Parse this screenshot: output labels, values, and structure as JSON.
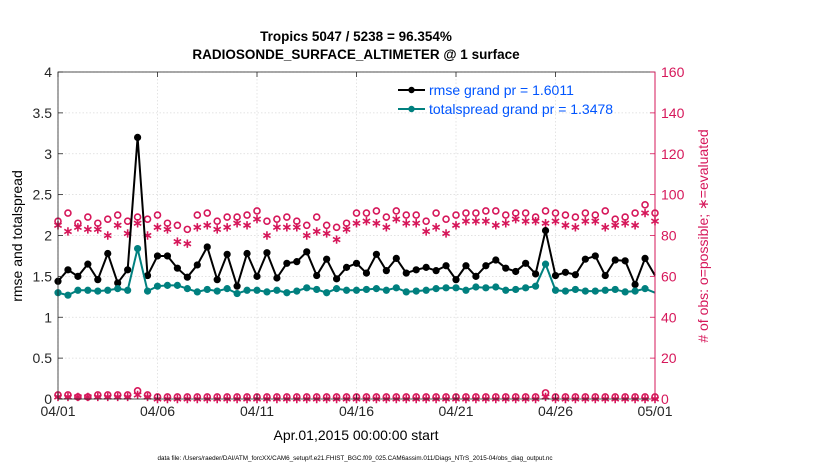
{
  "chart_data": {
    "type": "line",
    "title": [
      "Tropics 5047 / 5238 = 96.354%",
      "RADIOSONDE_SURFACE_ALTIMETER @ 1 surface"
    ],
    "xlabel": "Apr.01,2015 00:00:00 start",
    "ylabel_left": "rmse and totalspread",
    "ylabel_right": "# of obs: o=possible; ∗=evaluated",
    "xlim": [
      0,
      30
    ],
    "ylim_left": [
      0,
      4
    ],
    "ylim_right": [
      0,
      160
    ],
    "grid": true,
    "legend_position": "top-right",
    "x_ticks": [
      0,
      5,
      10,
      15,
      20,
      25,
      30
    ],
    "x_tick_labels": [
      "04/01",
      "04/06",
      "04/11",
      "04/16",
      "04/21",
      "04/26",
      "05/01"
    ],
    "y_left_ticks": [
      0,
      0.5,
      1,
      1.5,
      2,
      2.5,
      3,
      3.5,
      4
    ],
    "y_left_tick_labels": [
      "0",
      "0.5",
      "1",
      "1.5",
      "2",
      "2.5",
      "3",
      "3.5",
      "4"
    ],
    "y_right_ticks": [
      0,
      20,
      40,
      60,
      80,
      100,
      120,
      140,
      160
    ],
    "y_right_tick_labels": [
      "0",
      "20",
      "40",
      "60",
      "80",
      "100",
      "120",
      "140",
      "160"
    ],
    "x": [
      0,
      0.5,
      1,
      1.5,
      2,
      2.5,
      3,
      3.5,
      4,
      4.5,
      5,
      5.5,
      6,
      6.5,
      7,
      7.5,
      8,
      8.5,
      9,
      9.5,
      10,
      10.5,
      11,
      11.5,
      12,
      12.5,
      13,
      13.5,
      14,
      14.5,
      15,
      15.5,
      16,
      16.5,
      17,
      17.5,
      18,
      18.5,
      19,
      19.5,
      20,
      20.5,
      21,
      21.5,
      22,
      22.5,
      23,
      23.5,
      24,
      24.5,
      25,
      25.5,
      26,
      26.5,
      27,
      27.5,
      28,
      28.5,
      29,
      29.5,
      30
    ],
    "series": [
      {
        "name": "rmse grand pr = 1.6011",
        "axis": "left",
        "color": "#000000",
        "values": [
          1.44,
          1.58,
          1.5,
          1.65,
          1.46,
          1.78,
          1.42,
          1.58,
          3.2,
          1.51,
          1.75,
          1.75,
          1.6,
          1.49,
          1.64,
          1.86,
          1.46,
          1.77,
          1.38,
          1.78,
          1.5,
          1.79,
          1.48,
          1.66,
          1.68,
          1.8,
          1.51,
          1.71,
          1.47,
          1.61,
          1.66,
          1.54,
          1.77,
          1.57,
          1.72,
          1.54,
          1.58,
          1.61,
          1.57,
          1.63,
          1.46,
          1.63,
          1.5,
          1.63,
          1.7,
          1.6,
          1.56,
          1.66,
          1.53,
          2.06,
          1.51,
          1.55,
          1.52,
          1.71,
          1.75,
          1.51,
          1.7,
          1.69,
          1.4,
          1.72,
          1.51
        ],
        "marker_x": [
          0,
          0.5,
          1,
          1.5,
          2,
          2.5,
          3,
          3.5,
          4,
          4.5,
          5,
          5.5,
          6,
          6.5,
          7,
          7.5,
          8,
          8.5,
          9,
          9.5,
          10,
          10.5,
          11,
          11.5,
          12,
          12.5,
          13,
          13.5,
          14,
          14.5,
          15,
          15.5,
          16,
          16.5,
          17,
          17.5,
          18,
          18.5,
          19,
          19.5,
          20,
          20.5,
          21,
          21.5,
          22,
          22.5,
          23,
          23.5,
          24,
          24.5,
          25,
          25.5,
          26,
          26.5,
          27,
          27.5,
          28,
          28.5,
          29,
          29.5
        ],
        "marker_values": [
          1.44,
          1.58,
          1.5,
          1.65,
          1.46,
          1.78,
          1.42,
          1.58,
          3.2,
          1.51,
          1.75,
          1.75,
          1.6,
          1.49,
          1.64,
          1.86,
          1.46,
          1.77,
          1.38,
          1.78,
          1.5,
          1.79,
          1.48,
          1.66,
          1.68,
          1.8,
          1.51,
          1.71,
          1.47,
          1.61,
          1.66,
          1.54,
          1.77,
          1.57,
          1.72,
          1.54,
          1.58,
          1.61,
          1.57,
          1.63,
          1.46,
          1.63,
          1.5,
          1.63,
          1.7,
          1.6,
          1.56,
          1.66,
          1.53,
          2.06,
          1.51,
          1.55,
          1.52,
          1.71,
          1.75,
          1.51,
          1.7,
          1.69,
          1.4,
          1.72
        ]
      },
      {
        "name": "totalspread grand pr = 1.3478",
        "axis": "left",
        "color": "#00807f",
        "values": [
          1.3,
          1.27,
          1.33,
          1.33,
          1.32,
          1.33,
          1.35,
          1.33,
          1.84,
          1.32,
          1.38,
          1.39,
          1.39,
          1.35,
          1.31,
          1.34,
          1.32,
          1.35,
          1.29,
          1.33,
          1.33,
          1.31,
          1.33,
          1.3,
          1.32,
          1.36,
          1.34,
          1.3,
          1.35,
          1.33,
          1.33,
          1.34,
          1.35,
          1.33,
          1.36,
          1.31,
          1.32,
          1.33,
          1.35,
          1.36,
          1.36,
          1.33,
          1.37,
          1.36,
          1.37,
          1.33,
          1.34,
          1.36,
          1.38,
          1.65,
          1.33,
          1.32,
          1.34,
          1.32,
          1.32,
          1.33,
          1.34,
          1.31,
          1.32,
          1.35,
          1.3
        ],
        "marker_x": [
          0,
          0.5,
          1,
          1.5,
          2,
          2.5,
          3,
          3.5,
          4,
          4.5,
          5,
          5.5,
          6,
          6.5,
          7,
          7.5,
          8,
          8.5,
          9,
          9.5,
          10,
          10.5,
          11,
          11.5,
          12,
          12.5,
          13,
          13.5,
          14,
          14.5,
          15,
          15.5,
          16,
          16.5,
          17,
          17.5,
          18,
          18.5,
          19,
          19.5,
          20,
          20.5,
          21,
          21.5,
          22,
          22.5,
          23,
          23.5,
          24,
          24.5,
          25,
          25.5,
          26,
          26.5,
          27,
          27.5,
          28,
          28.5,
          29,
          29.5
        ],
        "marker_values": [
          1.3,
          1.27,
          1.33,
          1.33,
          1.32,
          1.33,
          1.35,
          1.33,
          1.84,
          1.32,
          1.38,
          1.39,
          1.39,
          1.35,
          1.31,
          1.34,
          1.32,
          1.35,
          1.29,
          1.33,
          1.33,
          1.31,
          1.33,
          1.3,
          1.32,
          1.36,
          1.34,
          1.3,
          1.35,
          1.33,
          1.33,
          1.34,
          1.35,
          1.33,
          1.36,
          1.31,
          1.32,
          1.33,
          1.35,
          1.36,
          1.36,
          1.33,
          1.37,
          1.36,
          1.37,
          1.33,
          1.34,
          1.36,
          1.38,
          1.65,
          1.33,
          1.32,
          1.34,
          1.32,
          1.32,
          1.33,
          1.34,
          1.31,
          1.32,
          1.35
        ]
      }
    ],
    "obs_possible": {
      "axis": "right",
      "marker": "o",
      "color": "#d6175a",
      "values": [
        87,
        91,
        86,
        89,
        86,
        88,
        90,
        87,
        89,
        88,
        90,
        86,
        85,
        83,
        90,
        91,
        87,
        89,
        89,
        90,
        92,
        87,
        88,
        89,
        87,
        85,
        89,
        85,
        84,
        86,
        91,
        91,
        92,
        89,
        92,
        90,
        90,
        87,
        91,
        88,
        90,
        91,
        91,
        92,
        92,
        90,
        91,
        91,
        89,
        92,
        91,
        90,
        89,
        91,
        90,
        92,
        88,
        89,
        91,
        95,
        91
      ],
      "zero_line_values": [
        2,
        2,
        1,
        1,
        2,
        2,
        2,
        2,
        4,
        2,
        1,
        1,
        1,
        1,
        1,
        1,
        1,
        1,
        1,
        1,
        1,
        1,
        1,
        1,
        1,
        1,
        1,
        1,
        1,
        1,
        1,
        1,
        1,
        1,
        1,
        1,
        1,
        1,
        1,
        1,
        1,
        1,
        1,
        1,
        1,
        1,
        1,
        1,
        1,
        3,
        1,
        1,
        1,
        1,
        1,
        1,
        1,
        1,
        1,
        1,
        1
      ]
    },
    "obs_evaluated": {
      "axis": "right",
      "marker": "*",
      "color": "#d6175a",
      "values": [
        85,
        82,
        84,
        83,
        83,
        80,
        85,
        81,
        86,
        80,
        84,
        83,
        77,
        76,
        84,
        85,
        83,
        84,
        86,
        85,
        88,
        80,
        84,
        84,
        84,
        80,
        82,
        81,
        78,
        83,
        86,
        87,
        86,
        84,
        88,
        86,
        86,
        82,
        84,
        81,
        85,
        87,
        87,
        87,
        85,
        86,
        88,
        87,
        87,
        86,
        87,
        85,
        84,
        87,
        87,
        84,
        85,
        86,
        85,
        91,
        87
      ],
      "zero_line_values": [
        1,
        1,
        1,
        1,
        1,
        1,
        1,
        1,
        2,
        1,
        0,
        0,
        0,
        0,
        0,
        0,
        0,
        0,
        0,
        0,
        0,
        0,
        0,
        0,
        0,
        0,
        0,
        0,
        0,
        0,
        0,
        0,
        0,
        0,
        0,
        0,
        0,
        0,
        0,
        0,
        0,
        0,
        0,
        0,
        0,
        0,
        0,
        0,
        0,
        1,
        0,
        0,
        0,
        0,
        0,
        0,
        0,
        0,
        0,
        0,
        0
      ]
    },
    "footnote": "data file: /Users/raeder/DAI/ATM_forcXX/CAM6_setup/f.e21.FHIST_BGC.f09_025.CAM6assim.011/Diags_NTrS_2015-04/obs_diag_output.nc"
  }
}
